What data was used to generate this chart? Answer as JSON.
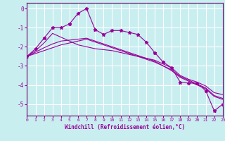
{
  "xlabel": "Windchill (Refroidissement éolien,°C)",
  "background_color": "#c8eef0",
  "grid_color": "#ffffff",
  "line_color": "#990099",
  "spine_color": "#660066",
  "xlim": [
    0,
    23
  ],
  "ylim": [
    -5.6,
    0.3
  ],
  "yticks": [
    0,
    -1,
    -2,
    -3,
    -4,
    -5
  ],
  "xticks": [
    0,
    1,
    2,
    3,
    4,
    5,
    6,
    7,
    8,
    9,
    10,
    11,
    12,
    13,
    14,
    15,
    16,
    17,
    18,
    19,
    20,
    21,
    22,
    23
  ],
  "series1_x": [
    0,
    1,
    2,
    3,
    4,
    5,
    6,
    7,
    8,
    9,
    10,
    11,
    12,
    13,
    14,
    15,
    16,
    17,
    18,
    19,
    20,
    21,
    22,
    23
  ],
  "series1_y": [
    -2.5,
    -2.1,
    -1.55,
    -1.0,
    -1.0,
    -0.8,
    -0.25,
    0.0,
    -1.1,
    -1.35,
    -1.15,
    -1.15,
    -1.25,
    -1.35,
    -1.75,
    -2.3,
    -2.8,
    -3.1,
    -3.85,
    -3.9,
    -3.9,
    -4.3,
    -5.35,
    -5.0
  ],
  "series2_x": [
    0,
    1,
    2,
    3,
    4,
    5,
    6,
    7,
    8,
    9,
    10,
    11,
    12,
    13,
    14,
    15,
    16,
    17,
    18,
    19,
    20,
    21,
    22,
    23
  ],
  "series2_y": [
    -2.5,
    -2.2,
    -1.8,
    -1.3,
    -1.5,
    -1.7,
    -1.9,
    -2.0,
    -2.1,
    -2.15,
    -2.2,
    -2.3,
    -2.4,
    -2.5,
    -2.6,
    -2.7,
    -2.9,
    -3.1,
    -3.5,
    -3.7,
    -3.85,
    -4.05,
    -4.4,
    -4.5
  ],
  "series3_x": [
    0,
    1,
    2,
    3,
    4,
    5,
    6,
    7,
    8,
    9,
    10,
    11,
    12,
    13,
    14,
    15,
    16,
    17,
    18,
    19,
    20,
    21,
    22,
    23
  ],
  "series3_y": [
    -2.5,
    -2.35,
    -2.2,
    -2.05,
    -1.9,
    -1.8,
    -1.7,
    -1.6,
    -1.75,
    -1.9,
    -2.05,
    -2.2,
    -2.35,
    -2.5,
    -2.65,
    -2.8,
    -3.0,
    -3.2,
    -3.55,
    -3.75,
    -3.95,
    -4.15,
    -4.55,
    -4.7
  ],
  "series4_x": [
    0,
    1,
    2,
    3,
    4,
    5,
    6,
    7,
    8,
    9,
    10,
    11,
    12,
    13,
    14,
    15,
    16,
    17,
    18,
    19,
    20,
    21,
    22,
    23
  ],
  "series4_y": [
    -2.5,
    -2.28,
    -2.05,
    -1.85,
    -1.7,
    -1.65,
    -1.6,
    -1.55,
    -1.7,
    -1.85,
    -2.0,
    -2.15,
    -2.3,
    -2.45,
    -2.6,
    -2.75,
    -3.0,
    -3.25,
    -3.6,
    -3.8,
    -4.0,
    -4.2,
    -4.6,
    -4.75
  ]
}
